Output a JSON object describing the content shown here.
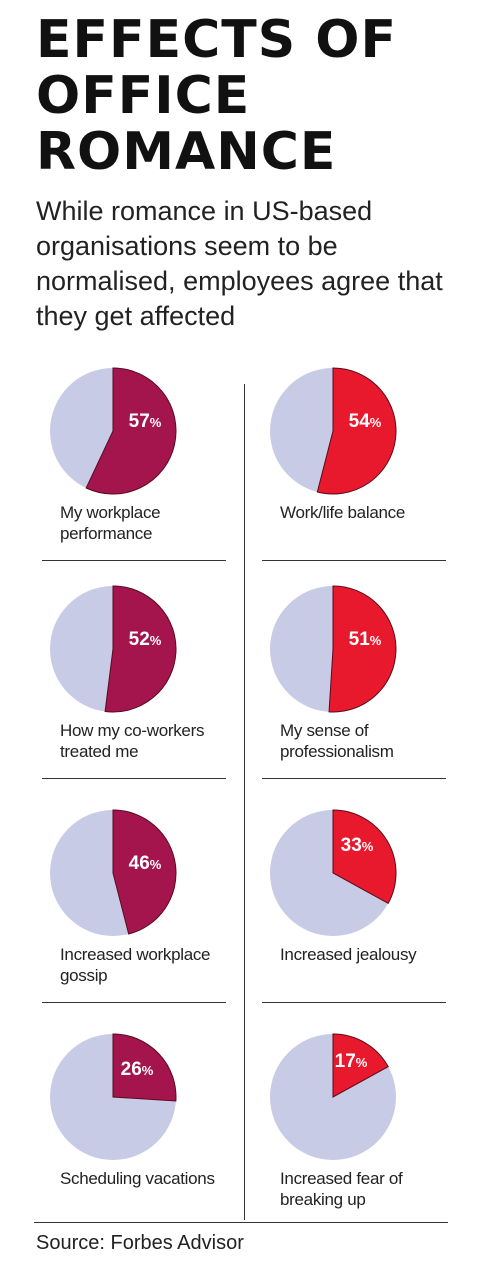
{
  "title_lines": [
    "EFFECTS OF",
    "OFFICE",
    "ROMANCE"
  ],
  "subtitle": "While romance in US-based organisations seem to be normalised, employees agree that they get affected",
  "source": "Source: Forbes Advisor",
  "colors": {
    "background_slice": "#c7cbe6",
    "left_column_slice": "#a5154d",
    "right_column_slice": "#e8192c"
  },
  "chart_data": {
    "type": "pie",
    "percent_suffix": "%",
    "items": [
      {
        "label": "My workplace performance",
        "value": 57,
        "column": "left"
      },
      {
        "label": "Work/life balance",
        "value": 54,
        "column": "right"
      },
      {
        "label": "How my co-workers treated me",
        "value": 52,
        "column": "left"
      },
      {
        "label": "My sense of professionalism",
        "value": 51,
        "column": "right"
      },
      {
        "label": "Increased workplace gossip",
        "value": 46,
        "column": "left"
      },
      {
        "label": "Increased jealousy",
        "value": 33,
        "column": "right"
      },
      {
        "label": "Scheduling vacations",
        "value": 26,
        "column": "left"
      },
      {
        "label": "Increased fear of breaking up",
        "value": 17,
        "column": "right"
      }
    ]
  }
}
